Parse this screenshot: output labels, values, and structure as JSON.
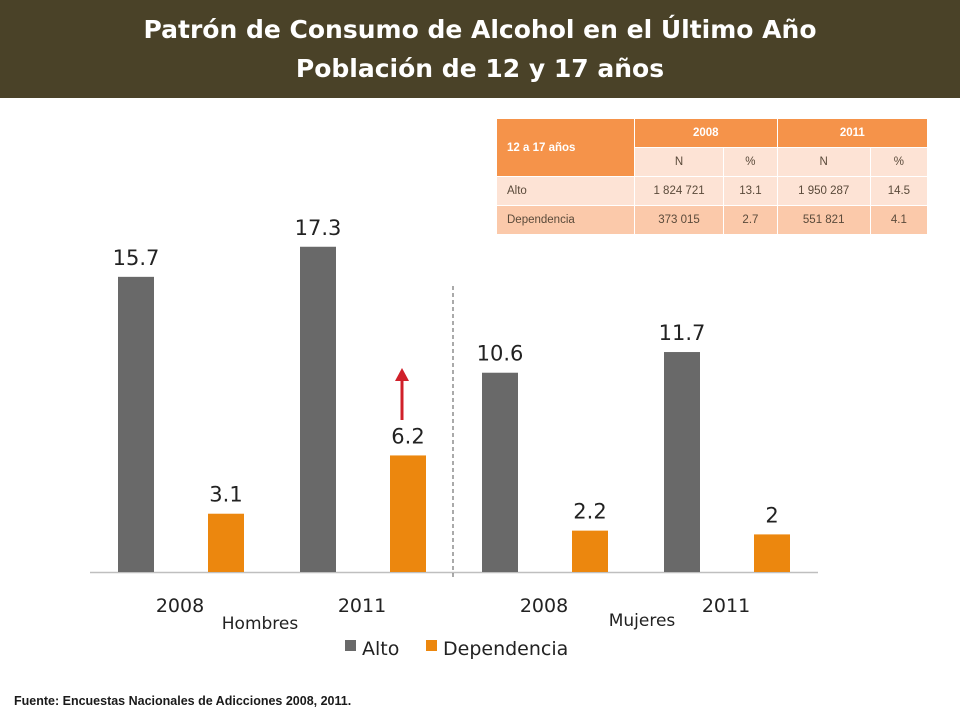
{
  "header": {
    "title_line1": "Patrón de Consumo de Alcohol en el Último Año",
    "title_line2": "Población de 12 y 17 años"
  },
  "table": {
    "corner": "12 a 17 años",
    "years": [
      "2008",
      "2011"
    ],
    "subheaders": [
      "N",
      "%",
      "N",
      "%"
    ],
    "rows": [
      {
        "label": "Alto",
        "cells": [
          "1 824 721",
          "13.1",
          "1 950 287",
          "14.5"
        ]
      },
      {
        "label": "Dependencia",
        "cells": [
          "373 015",
          "2.7",
          "551 821",
          "4.1"
        ]
      }
    ]
  },
  "chart_data": {
    "type": "bar",
    "title": "",
    "groups": [
      {
        "label": "Hombres",
        "categories": [
          "2008",
          "2011"
        ]
      },
      {
        "label": "Mujeres",
        "categories": [
          "2008",
          "2011"
        ]
      }
    ],
    "categories": [
      "2008",
      "2011",
      "2008",
      "2011"
    ],
    "series": [
      {
        "name": "Alto",
        "color": "#696969",
        "values": [
          15.7,
          17.3,
          10.6,
          11.7
        ],
        "labels": [
          "15.7",
          "17.3",
          "10.6",
          "11.7"
        ]
      },
      {
        "name": "Dependencia",
        "color": "#ec870e",
        "values": [
          3.1,
          6.2,
          2.2,
          2.0
        ],
        "labels": [
          "3.1",
          "6.2",
          "2.2",
          "2"
        ]
      }
    ],
    "annotation": {
      "type": "up-arrow",
      "color": "#d0202a",
      "target": "Dependencia 2011 Hombres"
    },
    "separator": "dashed line between Hombres and Mujeres",
    "legend_position": "bottom",
    "grid": false
  },
  "source": "Fuente: Encuestas Nacionales de Adicciones 2008, 2011."
}
